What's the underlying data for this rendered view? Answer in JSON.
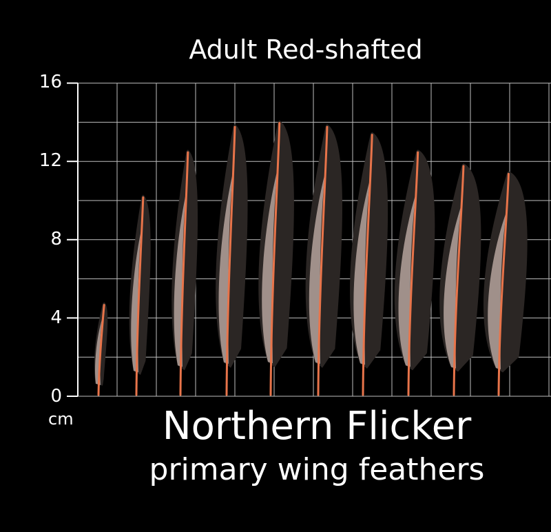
{
  "image": {
    "subtitle": "Adult Red-shafted",
    "title_line1": "Northern Flicker",
    "title_line2": "primary wing feathers",
    "unit": "cm",
    "y_ticks": [
      "16",
      "12",
      "8",
      "4",
      "0"
    ],
    "background_color": "#000000",
    "grid_color": "#bfbfbf",
    "feather_vane_color": "#2b2624",
    "feather_inner_color": "#c8b4ac",
    "shaft_color": "#e8744a"
  },
  "feathers": [
    {
      "id": 1,
      "length_cm": 4.8
    },
    {
      "id": 2,
      "length_cm": 10.3
    },
    {
      "id": 3,
      "length_cm": 12.6
    },
    {
      "id": 4,
      "length_cm": 13.9
    },
    {
      "id": 5,
      "length_cm": 14.1
    },
    {
      "id": 6,
      "length_cm": 13.9
    },
    {
      "id": 7,
      "length_cm": 13.5
    },
    {
      "id": 8,
      "length_cm": 12.6
    },
    {
      "id": 9,
      "length_cm": 11.9
    },
    {
      "id": 10,
      "length_cm": 11.5
    }
  ]
}
